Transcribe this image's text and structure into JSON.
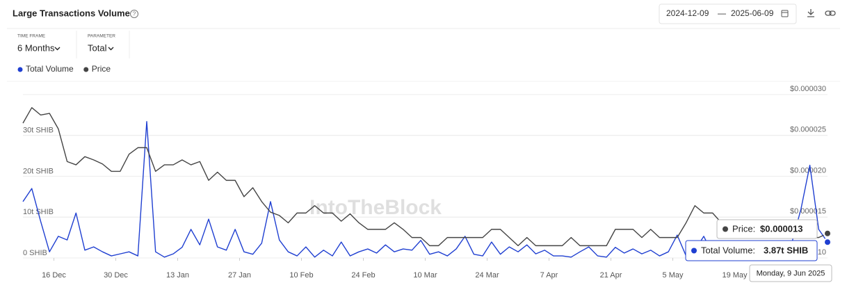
{
  "header": {
    "title": "Large Transactions Volume",
    "date_start": "2024-12-09",
    "date_separator": "—",
    "date_end": "2025-06-09"
  },
  "filters": [
    {
      "label": "TIME FRAME",
      "value": "6 Months"
    },
    {
      "label": "PARAMETER",
      "value": "Total"
    }
  ],
  "watermark": "IntoTheBlock",
  "tooltip": {
    "entries": [
      {
        "label": "Price:",
        "value": "$0.000013"
      },
      {
        "label": "Total Volume:",
        "value": "3.87t SHIB"
      }
    ],
    "date": "Monday, 9 Jun 2025"
  },
  "chart_data": {
    "type": "line",
    "x": [
      "2024-12-09",
      "2024-12-11",
      "2024-12-13",
      "2024-12-15",
      "2024-12-17",
      "2024-12-19",
      "2024-12-21",
      "2024-12-23",
      "2024-12-25",
      "2024-12-27",
      "2024-12-29",
      "2024-12-31",
      "2025-01-02",
      "2025-01-04",
      "2025-01-06",
      "2025-01-08",
      "2025-01-10",
      "2025-01-12",
      "2025-01-14",
      "2025-01-16",
      "2025-01-18",
      "2025-01-20",
      "2025-01-22",
      "2025-01-24",
      "2025-01-26",
      "2025-01-28",
      "2025-01-30",
      "2025-02-01",
      "2025-02-03",
      "2025-02-05",
      "2025-02-07",
      "2025-02-09",
      "2025-02-11",
      "2025-02-13",
      "2025-02-15",
      "2025-02-17",
      "2025-02-19",
      "2025-02-21",
      "2025-02-23",
      "2025-02-25",
      "2025-02-27",
      "2025-03-01",
      "2025-03-03",
      "2025-03-05",
      "2025-03-07",
      "2025-03-09",
      "2025-03-11",
      "2025-03-13",
      "2025-03-15",
      "2025-03-17",
      "2025-03-19",
      "2025-03-21",
      "2025-03-23",
      "2025-03-25",
      "2025-03-27",
      "2025-03-29",
      "2025-03-31",
      "2025-04-02",
      "2025-04-04",
      "2025-04-06",
      "2025-04-08",
      "2025-04-10",
      "2025-04-12",
      "2025-04-14",
      "2025-04-16",
      "2025-04-18",
      "2025-04-20",
      "2025-04-22",
      "2025-04-24",
      "2025-04-26",
      "2025-04-28",
      "2025-04-30",
      "2025-05-02",
      "2025-05-04",
      "2025-05-06",
      "2025-05-08",
      "2025-05-10",
      "2025-05-12",
      "2025-05-14",
      "2025-05-16",
      "2025-05-18",
      "2025-05-20",
      "2025-05-22",
      "2025-05-24",
      "2025-05-26",
      "2025-05-28",
      "2025-05-30",
      "2025-06-01",
      "2025-06-03",
      "2025-06-05",
      "2025-06-07",
      "2025-06-09"
    ],
    "xlim": [
      "2024-12-09",
      "2025-06-09"
    ],
    "xticks": [
      {
        "value": "2024-12-16",
        "label": "16 Dec"
      },
      {
        "value": "2024-12-30",
        "label": "30 Dec"
      },
      {
        "value": "2025-01-13",
        "label": "13 Jan"
      },
      {
        "value": "2025-01-27",
        "label": "27 Jan"
      },
      {
        "value": "2025-02-10",
        "label": "10 Feb"
      },
      {
        "value": "2025-02-24",
        "label": "24 Feb"
      },
      {
        "value": "2025-03-10",
        "label": "10 Mar"
      },
      {
        "value": "2025-03-24",
        "label": "24 Mar"
      },
      {
        "value": "2025-04-07",
        "label": "7 Apr"
      },
      {
        "value": "2025-04-21",
        "label": "21 Apr"
      },
      {
        "value": "2025-05-05",
        "label": "5 May"
      },
      {
        "value": "2025-05-19",
        "label": "19 May"
      }
    ],
    "ylim": [
      0,
      40
    ],
    "yticks": [
      {
        "value": 0,
        "label": "0 SHIB"
      },
      {
        "value": 10,
        "label": "10t SHIB"
      },
      {
        "value": 20,
        "label": "20t SHIB"
      },
      {
        "value": 30,
        "label": "30t SHIB"
      }
    ],
    "y2lim": [
      1e-05,
      3e-05
    ],
    "y2ticks": [
      {
        "value": 1e-05,
        "label": "$0.000010"
      },
      {
        "value": 1.5e-05,
        "label": "$0.000015"
      },
      {
        "value": 2e-05,
        "label": "$0.000020"
      },
      {
        "value": 2.5e-05,
        "label": "$0.000025"
      },
      {
        "value": 3e-05,
        "label": "$0.000030"
      }
    ],
    "grid": true,
    "series": [
      {
        "name": "Total Volume",
        "color": "#1f3fd1",
        "axis": "y",
        "values": [
          13.8,
          17,
          9,
          1.5,
          5.3,
          4.4,
          11,
          1.9,
          2.7,
          1.5,
          0.5,
          1,
          1.5,
          0.5,
          33.4,
          1.5,
          0.2,
          1,
          2.6,
          7,
          3.2,
          9.5,
          2.7,
          1.9,
          7,
          1.5,
          0.9,
          3.6,
          13.8,
          4.4,
          1.5,
          0.5,
          2.7,
          0.2,
          1.9,
          0.5,
          3.9,
          0.5,
          1.5,
          2.2,
          1.2,
          3.2,
          1.5,
          2.2,
          1.9,
          4.3,
          0.9,
          1.5,
          0.5,
          2.2,
          5.3,
          0.9,
          0.5,
          3.9,
          0.9,
          2.7,
          1.5,
          3.2,
          1,
          1.9,
          0.5,
          0.5,
          0.2,
          1.5,
          2.7,
          0.5,
          0.2,
          2.6,
          1.2,
          2.2,
          1,
          1.9,
          0.5,
          1.5,
          5.6,
          0.5,
          1.9,
          5.3,
          1,
          1.9,
          1.5,
          1,
          2,
          1.5,
          1,
          1.2,
          1.5,
          4,
          12,
          22.7,
          7,
          3.87
        ]
      },
      {
        "name": "Price",
        "color": "#444444",
        "axis": "y2",
        "values": [
          2.65e-05,
          2.84e-05,
          2.75e-05,
          2.77e-05,
          2.58e-05,
          2.18e-05,
          2.14e-05,
          2.24e-05,
          2.2e-05,
          2.15e-05,
          2.06e-05,
          2.06e-05,
          2.27e-05,
          2.35e-05,
          2.35e-05,
          2.06e-05,
          2.14e-05,
          2.14e-05,
          2.2e-05,
          2.14e-05,
          2.18e-05,
          1.95e-05,
          2.05e-05,
          1.95e-05,
          1.95e-05,
          1.75e-05,
          1.86e-05,
          1.69e-05,
          1.56e-05,
          1.52e-05,
          1.43e-05,
          1.55e-05,
          1.55e-05,
          1.64e-05,
          1.55e-05,
          1.55e-05,
          1.45e-05,
          1.54e-05,
          1.43e-05,
          1.35e-05,
          1.35e-05,
          1.35e-05,
          1.43e-05,
          1.35e-05,
          1.25e-05,
          1.25e-05,
          1.15e-05,
          1.15e-05,
          1.25e-05,
          1.25e-05,
          1.25e-05,
          1.25e-05,
          1.25e-05,
          1.35e-05,
          1.35e-05,
          1.25e-05,
          1.15e-05,
          1.25e-05,
          1.15e-05,
          1.15e-05,
          1.15e-05,
          1.15e-05,
          1.25e-05,
          1.15e-05,
          1.15e-05,
          1.15e-05,
          1.15e-05,
          1.35e-05,
          1.35e-05,
          1.35e-05,
          1.25e-05,
          1.35e-05,
          1.25e-05,
          1.25e-05,
          1.25e-05,
          1.43e-05,
          1.64e-05,
          1.55e-05,
          1.55e-05,
          1.43e-05,
          1.35e-05,
          1.35e-05,
          1.35e-05,
          1.25e-05,
          1.25e-05,
          1.25e-05,
          1.25e-05,
          1.25e-05,
          1.25e-05,
          1.25e-05,
          1.25e-05,
          1.3e-05
        ]
      }
    ]
  }
}
